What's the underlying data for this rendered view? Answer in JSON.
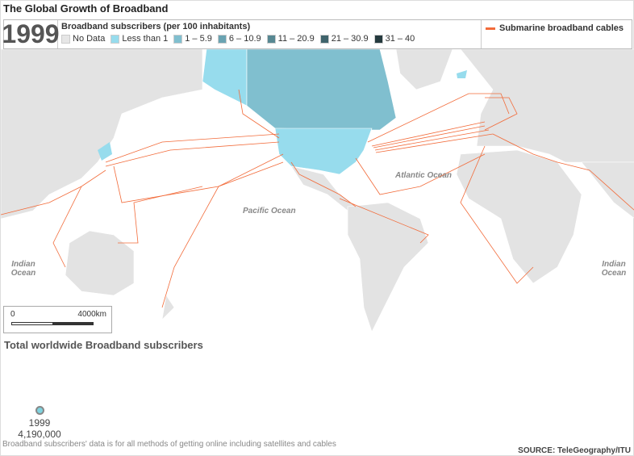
{
  "title": "The Global Growth of Broadband",
  "legend": {
    "year": "1999",
    "scale_title": "Broadband subscribers (per 100 inhabitants)",
    "items": [
      {
        "label": "No Data",
        "color": "#e6e6e6"
      },
      {
        "label": "Less than 1",
        "color": "#97dced"
      },
      {
        "label": "1 – 5.9",
        "color": "#80bfcf"
      },
      {
        "label": "6 – 10.9",
        "color": "#6aa3b2"
      },
      {
        "label": "11 – 20.9",
        "color": "#578892"
      },
      {
        "label": "21 – 30.9",
        "color": "#3f646c"
      },
      {
        "label": "31 – 40",
        "color": "#253a3e"
      }
    ],
    "cables_label": "Submarine broadband cables",
    "cable_color": "#f26b3a"
  },
  "oceans": {
    "pacific": "Pacific Ocean",
    "atlantic": "Atlantic Ocean",
    "indian_left": "Indian Ocean",
    "indian_right": "Indian Ocean"
  },
  "scale": {
    "start": "0",
    "end": "4000km"
  },
  "total": {
    "heading": "Total worldwide Broadband subscribers",
    "year": "1999",
    "value": "4,190,000"
  },
  "note": "Broadband subscribers' data is for all methods of getting online including satellites and cables",
  "source": "SOURCE: TeleGeography/ITU"
}
